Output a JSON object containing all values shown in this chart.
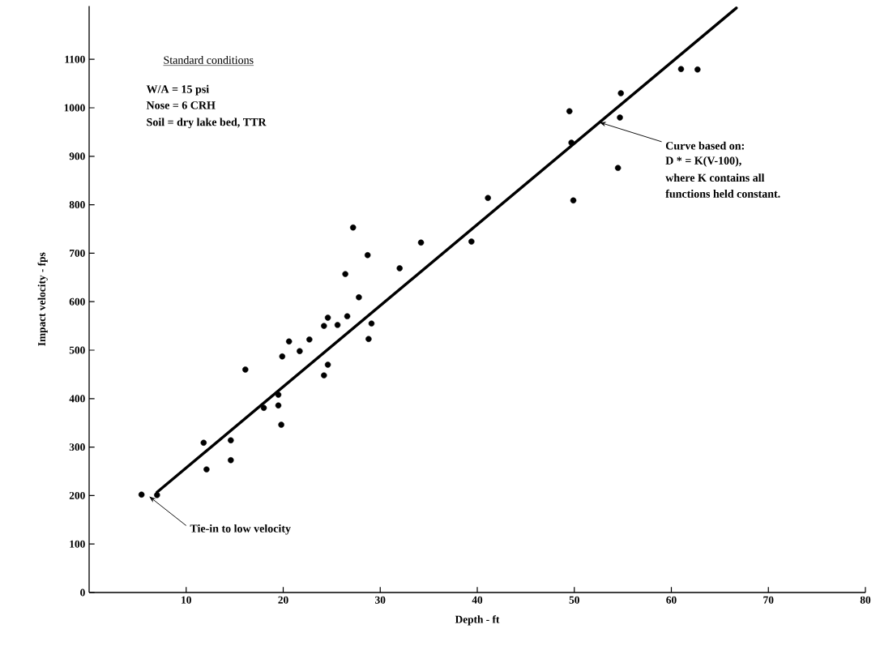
{
  "chart_data": {
    "type": "scatter",
    "xlabel": "Depth - ft",
    "ylabel": "Impact velocity - fps",
    "xlim": [
      0,
      80
    ],
    "xticks": [
      10,
      20,
      30,
      40,
      50,
      60,
      70,
      80
    ],
    "ylim": [
      0,
      1210
    ],
    "yticks": [
      0,
      100,
      200,
      300,
      400,
      500,
      600,
      700,
      800,
      900,
      1000,
      1100
    ],
    "series": [
      {
        "marker": "circle",
        "color": "#000000",
        "x": [
          5.4,
          7.0,
          12.1,
          11.8,
          14.6,
          14.6,
          16.1,
          18.0,
          19.5,
          19.5,
          19.8,
          19.9,
          20.6,
          21.7,
          22.7,
          24.2,
          24.6,
          24.2,
          24.6,
          25.6,
          26.6,
          26.4,
          27.2,
          27.8,
          28.7,
          29.1,
          28.8,
          32.0,
          34.2,
          39.4,
          41.1,
          49.5,
          49.7,
          49.9,
          54.8,
          54.7,
          54.5,
          61.0,
          62.7
        ],
        "values": [
          202,
          201,
          254,
          309,
          273,
          314,
          460,
          381,
          408,
          386,
          346,
          487,
          518,
          498,
          522,
          448,
          470,
          550,
          567,
          552,
          570,
          657,
          753,
          609,
          696,
          555,
          523,
          669,
          722,
          724,
          814,
          993,
          928,
          809,
          1030,
          980,
          876,
          1080,
          1079
        ]
      },
      {
        "type": "line",
        "marker": "none",
        "color": "#000000",
        "x": [
          7.0,
          66.7
        ],
        "values": [
          207,
          1206
        ]
      }
    ],
    "annotations": [
      "Standard conditions",
      "W/A = 15 psi",
      "Nose = 6 CRH",
      "Soil = dry lake bed, TTR",
      {
        "text": "Curve based on:",
        "x": 52.6,
        "y": 970
      },
      "D * = K(V-100),",
      "where K contains all",
      "functions held constant.",
      "Tie-in to low velocity"
    ]
  }
}
